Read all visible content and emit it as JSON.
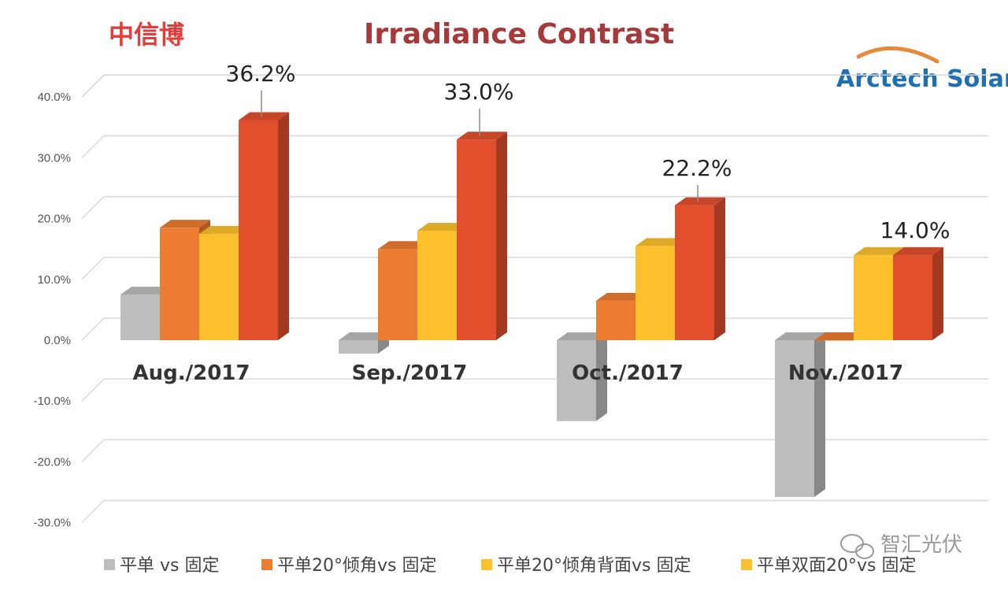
{
  "brand": {
    "cn_name": "中信博",
    "logo_text": "Arctech Solar"
  },
  "watermark": {
    "text": "智汇光伏"
  },
  "colors": {
    "gray": "#bdbdbd",
    "orange": "#ec7c31",
    "yellow": "#fcc02c",
    "red": "#e24f2c"
  },
  "chart_data": {
    "type": "bar",
    "title": "Irradiance  Contrast",
    "xlabel": "",
    "ylabel": "",
    "ylim": [
      -30,
      40
    ],
    "yticks": [
      40,
      30,
      20,
      10,
      0,
      -10,
      -20,
      -30
    ],
    "ytick_labels": [
      "40.0%",
      "30.0%",
      "20.0%",
      "10.0%",
      "0.0%",
      "-10.0%",
      "-20.0%",
      "-30.0%"
    ],
    "categories": [
      "Aug./2017",
      "Sep./2017",
      "Oct./2017",
      "Nov./2017"
    ],
    "legend_position": "bottom",
    "series": [
      {
        "name": "平单 vs 固定",
        "color": "#bdbdbd",
        "values": [
          7.5,
          -2.2,
          -13.3,
          -25.8
        ]
      },
      {
        "name": "平单20°倾角vs 固定",
        "color": "#ec7c31",
        "values": [
          18.5,
          15.0,
          6.5,
          0.0
        ]
      },
      {
        "name": "平单20°倾角背面vs 固定",
        "color": "#fcc02c",
        "values": [
          17.5,
          18.0,
          15.5,
          null
        ]
      },
      {
        "name": "平单双面20°vs 固定",
        "color": "#fcc02c",
        "values": [
          null,
          null,
          null,
          14.0
        ]
      },
      {
        "name": "",
        "color": "#e24f2c",
        "values": [
          36.2,
          33.0,
          22.2,
          14.0
        ]
      }
    ],
    "data_labels": [
      {
        "category": "Aug./2017",
        "text": "36.2%"
      },
      {
        "category": "Sep./2017",
        "text": "33.0%"
      },
      {
        "category": "Oct./2017",
        "text": "22.2%"
      },
      {
        "category": "Nov./2017",
        "text": "14.0%"
      }
    ]
  }
}
